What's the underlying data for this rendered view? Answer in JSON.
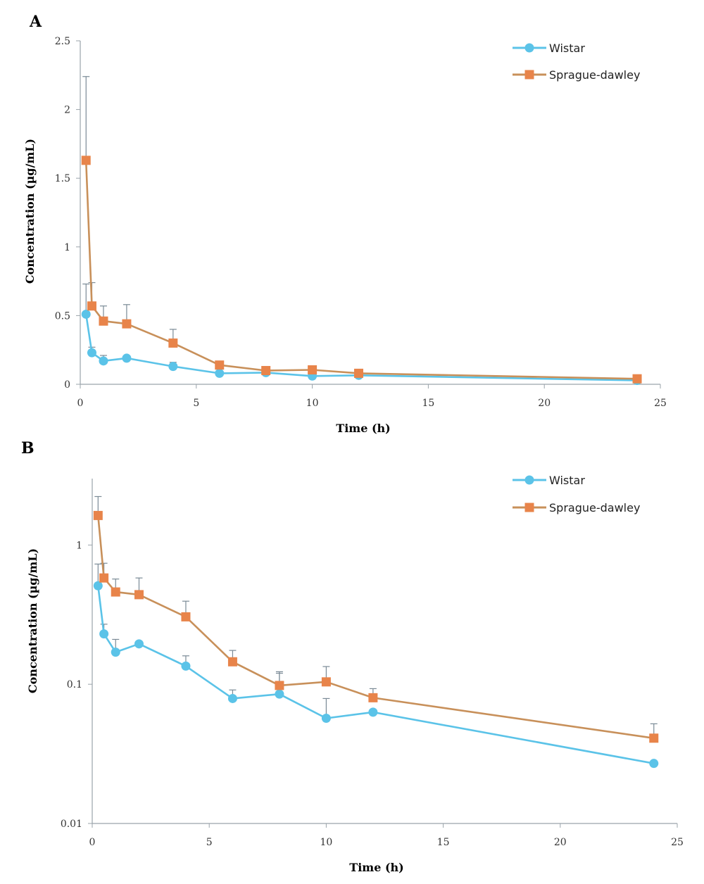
{
  "colors": {
    "wistar": "#5bc3e8",
    "sprague_line": "#c8905a",
    "sprague_marker": "#e8844a",
    "errorbar": "#7a8a96",
    "axis": "#9aa3aa"
  },
  "chart_data": [
    {
      "type": "line",
      "panel": "A",
      "xlabel": "Time (h)",
      "ylabel": "Concentration (µg/mL)",
      "xlim": [
        0,
        25
      ],
      "ylim": [
        0,
        2.5
      ],
      "yscale": "linear",
      "xticks": [
        0,
        5,
        10,
        15,
        20,
        25
      ],
      "yticks": [
        0,
        0.5,
        1,
        1.5,
        2,
        2.5
      ],
      "ytick_labels": [
        "0",
        "0.5",
        "1",
        "1.5",
        "2",
        "2.5"
      ],
      "legend": "top-right",
      "series": [
        {
          "name": "Wistar",
          "marker": "circle",
          "x": [
            0.25,
            0.5,
            1,
            2,
            4,
            6,
            8,
            10,
            12,
            24
          ],
          "y": [
            0.51,
            0.23,
            0.17,
            0.19,
            0.13,
            0.08,
            0.085,
            0.06,
            0.065,
            0.028
          ],
          "err": [
            0.22,
            0.04,
            0.04,
            0.0,
            0.03,
            0.01,
            0.0,
            0.0,
            0.0,
            0.0
          ]
        },
        {
          "name": "Sprague-dawley",
          "marker": "square",
          "x": [
            0.25,
            0.5,
            1,
            2,
            4,
            6,
            8,
            10,
            12,
            24
          ],
          "y": [
            1.63,
            0.57,
            0.46,
            0.44,
            0.3,
            0.14,
            0.1,
            0.105,
            0.08,
            0.04
          ],
          "err": [
            0.61,
            0.17,
            0.11,
            0.14,
            0.1,
            0.0,
            0.0,
            0.0,
            0.0,
            0.0
          ]
        }
      ]
    },
    {
      "type": "line",
      "panel": "B",
      "xlabel": "Time (h)",
      "ylabel": "Concentration (µg/mL)",
      "xlim": [
        0,
        25
      ],
      "ylim": [
        0.01,
        3
      ],
      "yscale": "log",
      "xticks": [
        0,
        5,
        10,
        15,
        20,
        25
      ],
      "yticks": [
        0.01,
        0.1,
        1
      ],
      "ytick_labels": [
        "0.01",
        "0.1",
        "1"
      ],
      "legend": "top-right",
      "series": [
        {
          "name": "Wistar",
          "marker": "circle",
          "x": [
            0.25,
            0.5,
            1,
            2,
            4,
            6,
            8,
            10,
            12,
            24
          ],
          "y": [
            0.51,
            0.23,
            0.17,
            0.195,
            0.135,
            0.079,
            0.085,
            0.057,
            0.063,
            0.027
          ],
          "err": [
            0.22,
            0.04,
            0.04,
            0.0,
            0.025,
            0.012,
            0.035,
            0.022,
            0.0,
            0.0
          ]
        },
        {
          "name": "Sprague-dawley",
          "marker": "square",
          "x": [
            0.25,
            0.5,
            1,
            2,
            4,
            6,
            8,
            10,
            12,
            24
          ],
          "y": [
            1.63,
            0.58,
            0.46,
            0.44,
            0.305,
            0.145,
            0.098,
            0.104,
            0.08,
            0.041
          ],
          "err": [
            0.6,
            0.16,
            0.11,
            0.14,
            0.09,
            0.03,
            0.025,
            0.03,
            0.013,
            0.011
          ]
        }
      ]
    }
  ]
}
